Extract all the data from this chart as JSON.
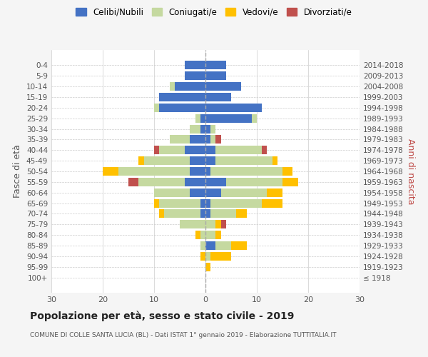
{
  "age_groups": [
    "100+",
    "95-99",
    "90-94",
    "85-89",
    "80-84",
    "75-79",
    "70-74",
    "65-69",
    "60-64",
    "55-59",
    "50-54",
    "45-49",
    "40-44",
    "35-39",
    "30-34",
    "25-29",
    "20-24",
    "15-19",
    "10-14",
    "5-9",
    "0-4"
  ],
  "birth_years": [
    "≤ 1918",
    "1919-1923",
    "1924-1928",
    "1929-1933",
    "1934-1938",
    "1939-1943",
    "1944-1948",
    "1949-1953",
    "1954-1958",
    "1959-1963",
    "1964-1968",
    "1969-1973",
    "1974-1978",
    "1979-1983",
    "1984-1988",
    "1989-1993",
    "1994-1998",
    "1999-2003",
    "2004-2008",
    "2009-2013",
    "2014-2018"
  ],
  "male": {
    "celibi": [
      0,
      0,
      0,
      0,
      0,
      0,
      1,
      1,
      3,
      4,
      3,
      3,
      4,
      3,
      1,
      1,
      9,
      9,
      6,
      4,
      4
    ],
    "coniugati": [
      0,
      0,
      0,
      1,
      1,
      5,
      7,
      8,
      7,
      9,
      14,
      9,
      5,
      4,
      2,
      1,
      1,
      0,
      1,
      0,
      0
    ],
    "vedovi": [
      0,
      0,
      1,
      0,
      1,
      0,
      1,
      1,
      0,
      0,
      3,
      1,
      0,
      0,
      0,
      0,
      0,
      0,
      0,
      0,
      0
    ],
    "divorziati": [
      0,
      0,
      0,
      0,
      0,
      0,
      0,
      0,
      0,
      2,
      0,
      0,
      1,
      0,
      0,
      0,
      0,
      0,
      0,
      0,
      0
    ]
  },
  "female": {
    "nubili": [
      0,
      0,
      0,
      2,
      0,
      0,
      1,
      1,
      3,
      4,
      1,
      2,
      2,
      1,
      1,
      9,
      11,
      5,
      7,
      4,
      4
    ],
    "coniugate": [
      0,
      0,
      1,
      3,
      2,
      2,
      5,
      10,
      9,
      11,
      14,
      11,
      9,
      1,
      1,
      1,
      0,
      0,
      0,
      0,
      0
    ],
    "vedove": [
      0,
      1,
      4,
      3,
      1,
      1,
      2,
      4,
      3,
      3,
      2,
      1,
      0,
      0,
      0,
      0,
      0,
      0,
      0,
      0,
      0
    ],
    "divorziate": [
      0,
      0,
      0,
      0,
      0,
      1,
      0,
      0,
      0,
      0,
      0,
      0,
      1,
      1,
      0,
      0,
      0,
      0,
      0,
      0,
      0
    ]
  },
  "colors": {
    "celibi": "#4472c4",
    "coniugati": "#c5d9a0",
    "vedovi": "#ffc000",
    "divorziati": "#c0504d"
  },
  "xlim": 30,
  "title": "Popolazione per età, sesso e stato civile - 2019",
  "subtitle": "COMUNE DI COLLE SANTA LUCIA (BL) - Dati ISTAT 1° gennaio 2019 - Elaborazione TUTTITALIA.IT",
  "ylabel_left": "Fasce di età",
  "ylabel_right": "Anni di nascita",
  "bg_color": "#f5f5f5",
  "plot_bg_color": "#ffffff",
  "legend_labels": [
    "Celibi/Nubili",
    "Coniugati/e",
    "Vedovi/e",
    "Divorziati/e"
  ]
}
